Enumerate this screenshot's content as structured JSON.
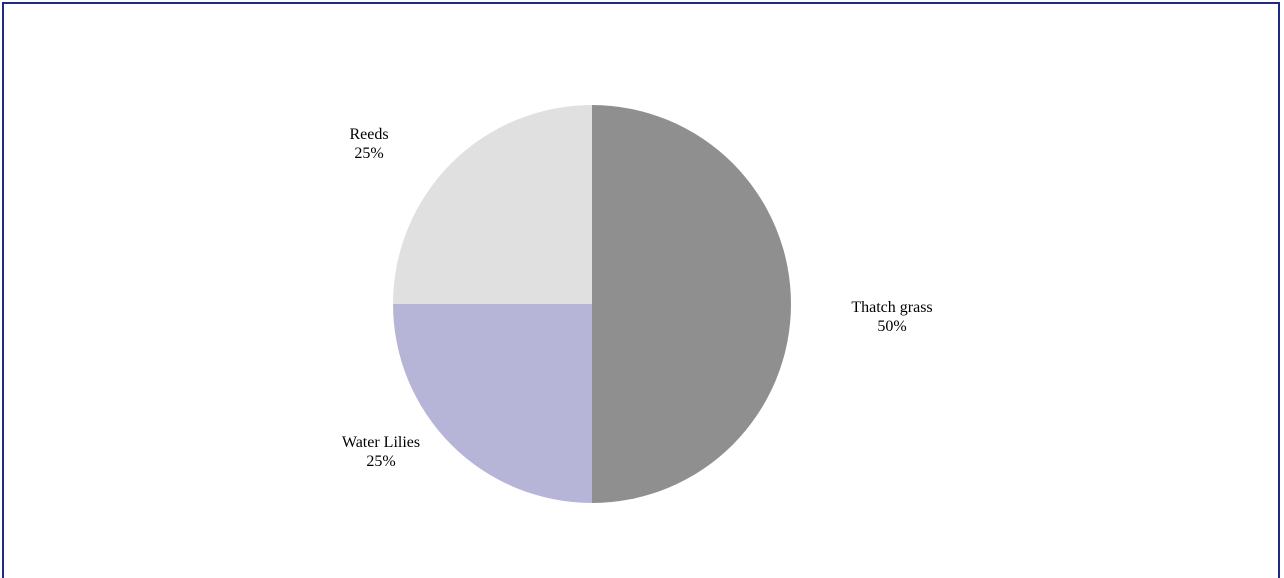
{
  "chart_data": {
    "type": "pie",
    "title": "",
    "slices": [
      {
        "label": "Thatch grass",
        "value": 50,
        "value_label": "50%",
        "color": "#8f8f8f"
      },
      {
        "label": "Water Lilies",
        "value": 25,
        "value_label": "25%",
        "color": "#b6b5d8"
      },
      {
        "label": "Reeds",
        "value": 25,
        "value_label": "25%",
        "color": "#e0e0e0"
      }
    ],
    "start_angle": "12 o'clock",
    "direction": "clockwise",
    "legend": "none"
  }
}
